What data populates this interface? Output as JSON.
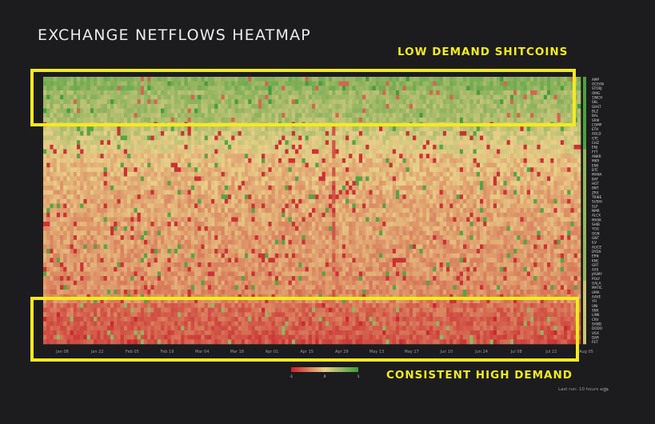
{
  "title": "EXCHANGE NETFLOWS HEATMAP",
  "annotations": {
    "top": "LOW DEMAND SHITCOINS",
    "bottom": "CONSISTENT HIGH DEMAND"
  },
  "footer": {
    "last_run": "Last run: 10 hours ago"
  },
  "colors": {
    "neg": "#c8202a",
    "mid": "#e9d089",
    "pos": "#3f9a3a",
    "highlight": "#f4ea1f",
    "background": "#1c1c1e"
  },
  "chart_data": {
    "type": "heatmap",
    "x_ticks": [
      "Jan 08",
      "Jan 22",
      "Feb 05",
      "Feb 19",
      "Mar 04",
      "Mar 18",
      "Apr 01",
      "Apr 15",
      "Apr 29",
      "May 13",
      "May 27",
      "Jun 10",
      "Jun 24",
      "Jul 08",
      "Jul 22",
      "Aug 05"
    ],
    "rows": [
      "AMP",
      "OCEAN",
      "STORJ",
      "OMG",
      "1INCH",
      "SKL",
      "GHST",
      "BLZ",
      "BAL",
      "SRM",
      "COMP",
      "ETH",
      "AGLD",
      "GTC",
      "CHZ",
      "ENJ",
      "FTT",
      "ANKR",
      "MKR",
      "ENS",
      "BTC",
      "MANA",
      "BAT",
      "HOT",
      "BNT",
      "ZRX",
      "TRIBE",
      "SUSHI",
      "SLP",
      "NMR",
      "ALCX",
      "MASK",
      "SHIB",
      "YGG",
      "OGN",
      "GNT",
      "ILV",
      "ALICE",
      "DYDX",
      "ERN",
      "KNC",
      "GRT",
      "AXS",
      "JASMY",
      "POLY",
      "GALA",
      "MATIC",
      "UMA",
      "AAVE",
      "YFI",
      "UNI",
      "SNX",
      "LINK",
      "CRV",
      "SAND",
      "DODO",
      "VGX",
      "DAR",
      "FET"
    ],
    "colorbar": {
      "min": -1,
      "mid": 0,
      "max": 1,
      "tick_labels": [
        "-1",
        "0",
        "1"
      ]
    }
  }
}
